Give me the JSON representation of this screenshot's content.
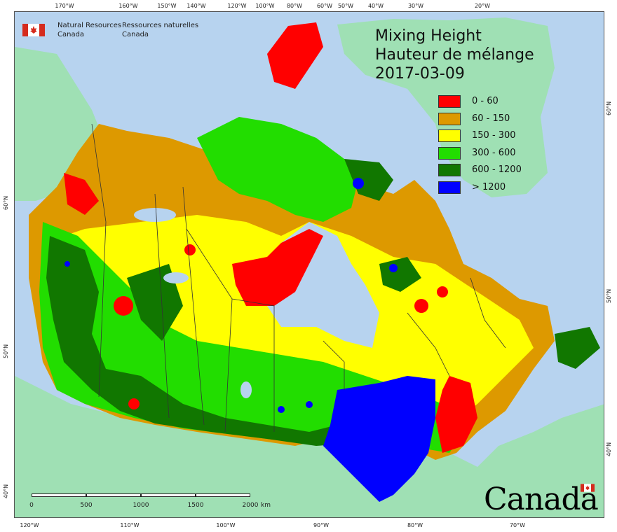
{
  "agency": {
    "name_en": "Natural Resources\nCanada",
    "name_fr": "Ressources naturelles\nCanada"
  },
  "title": {
    "line1": "Mixing Height",
    "line2": "Hauteur de mélange",
    "date": "2017-03-09"
  },
  "legend": [
    {
      "label": "0 - 60",
      "color": "#ff0000"
    },
    {
      "label": "60 - 150",
      "color": "#dd9900"
    },
    {
      "label": "150 - 300",
      "color": "#ffff00"
    },
    {
      "label": "300 - 600",
      "color": "#22dd00"
    },
    {
      "label": "600 - 1200",
      "color": "#117700"
    },
    {
      "label": "> 1200",
      "color": "#0000ff"
    }
  ],
  "top_ticks": [
    "170°W",
    "160°W",
    "150°W",
    "140°W",
    "120°W",
    "100°W",
    "80°W",
    "60°W",
    "50°W",
    "40°W",
    "30°W",
    "20°W"
  ],
  "bottom_ticks": [
    "120°W",
    "110°W",
    "100°W",
    "90°W",
    "80°W",
    "70°W"
  ],
  "right_ticks": [
    "60°N",
    "50°N",
    "40°N"
  ],
  "left_ticks": [
    "60°N",
    "50°N",
    "40°N"
  ],
  "scale": {
    "labels": [
      "0",
      "500",
      "1000",
      "1500",
      "2000"
    ],
    "unit": "km"
  },
  "wordmark": "Canada",
  "colors": {
    "ocean": "#b7d3ef",
    "land_other": "#9fe0b4"
  }
}
